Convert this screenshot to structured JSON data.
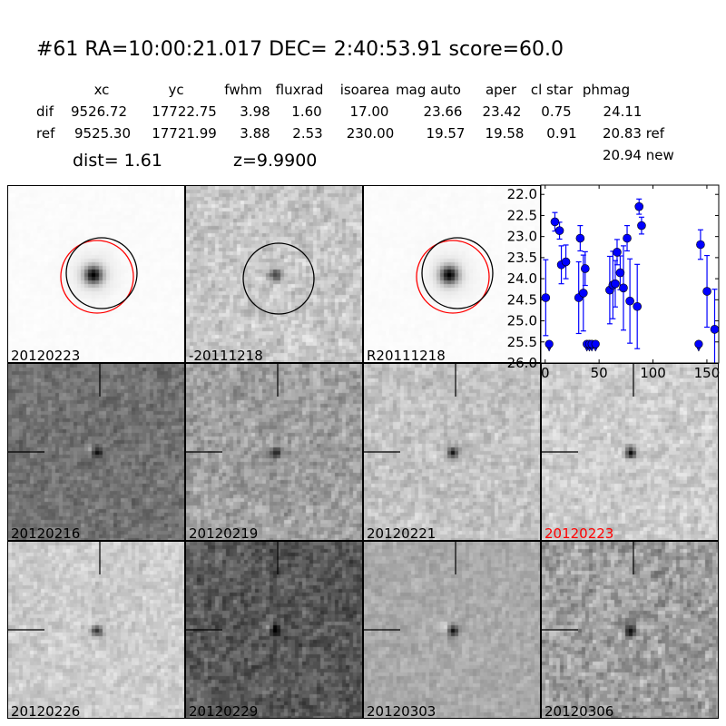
{
  "title": "#61   RA=10:00:21.017 DEC= 2:40:53.91      score=60.0",
  "table": {
    "headers": [
      "xc",
      "yc",
      "fwhm",
      "fluxrad",
      "isoarea",
      "mag auto",
      "aper",
      "cl star",
      "phmag"
    ],
    "rows": [
      {
        "label": "dif",
        "values": [
          "9526.72",
          "17722.75",
          "3.98",
          "1.60",
          "17.00",
          "23.66",
          "23.42",
          "0.75",
          "24.11"
        ]
      },
      {
        "label": "ref",
        "values": [
          "9525.30",
          "17721.99",
          "3.88",
          "2.53",
          "230.00",
          "19.57",
          "19.58",
          "0.91",
          "20.83 ref"
        ]
      }
    ],
    "extra": "20.94 new",
    "dist": "dist=  1.61",
    "z": "z=9.9900"
  },
  "cutouts": [
    {
      "label": "20120223",
      "color": "#000000"
    },
    {
      "label": "-20111218",
      "color": "#000000"
    },
    {
      "label": "R20111218",
      "color": "#000000"
    },
    {
      "label": "20120216",
      "color": "#000000"
    },
    {
      "label": "20120219",
      "color": "#000000"
    },
    {
      "label": "20120221",
      "color": "#000000"
    },
    {
      "label": "20120223",
      "color": "#ff0000"
    },
    {
      "label": "20120226",
      "color": "#000000"
    },
    {
      "label": "20120229",
      "color": "#000000"
    },
    {
      "label": "20120303",
      "color": "#000000"
    },
    {
      "label": "20120306",
      "color": "#000000"
    }
  ],
  "chart_data": {
    "type": "scatter",
    "xlim": [
      -4,
      161
    ],
    "ylim": [
      26.0,
      21.78
    ],
    "y_inverted": true,
    "xticks": [
      0,
      50,
      100,
      150
    ],
    "yticks": [
      "22.0",
      "22.5",
      "23.0",
      "23.5",
      "24.0",
      "24.5",
      "25.0",
      "25.5",
      "26.0"
    ],
    "marker_color": "#0000ff",
    "points": [
      {
        "x": 0.5,
        "y": 24.45,
        "err": 0.9
      },
      {
        "x": 9.0,
        "y": 22.65,
        "err": 0.22
      },
      {
        "x": 13.3,
        "y": 22.86,
        "err": 0.2
      },
      {
        "x": 15.0,
        "y": 23.67,
        "err": 0.45
      },
      {
        "x": 19.2,
        "y": 23.6,
        "err": 0.4
      },
      {
        "x": 31.1,
        "y": 24.45,
        "err": 0.85
      },
      {
        "x": 32.5,
        "y": 23.04,
        "err": 0.3
      },
      {
        "x": 35.4,
        "y": 24.34,
        "err": 0.9
      },
      {
        "x": 37.1,
        "y": 23.76,
        "err": 0.4
      },
      {
        "x": 59.9,
        "y": 24.27,
        "err": 0.8
      },
      {
        "x": 62.8,
        "y": 24.15,
        "err": 0.8
      },
      {
        "x": 65.0,
        "y": 24.12,
        "err": 0.55
      },
      {
        "x": 66.7,
        "y": 23.37,
        "err": 0.3
      },
      {
        "x": 69.6,
        "y": 23.86,
        "err": 0.4
      },
      {
        "x": 72.6,
        "y": 24.22,
        "err": 1.0
      },
      {
        "x": 76.0,
        "y": 23.04,
        "err": 0.3
      },
      {
        "x": 78.6,
        "y": 24.53,
        "err": 1.0
      },
      {
        "x": 85.4,
        "y": 24.66,
        "err": 1.0
      },
      {
        "x": 87.1,
        "y": 22.29,
        "err": 0.18
      },
      {
        "x": 89.4,
        "y": 22.74,
        "err": 0.2
      },
      {
        "x": 144.1,
        "y": 23.19,
        "err": 0.35
      },
      {
        "x": 150.1,
        "y": 24.3,
        "err": 0.85
      },
      {
        "x": 157.2,
        "y": 25.2,
        "err": 0.95
      }
    ],
    "upper_limits": [
      {
        "x": 3.7,
        "y": 25.55
      },
      {
        "x": 38.7,
        "y": 25.55
      },
      {
        "x": 41.0,
        "y": 25.55
      },
      {
        "x": 43.3,
        "y": 25.55
      },
      {
        "x": 46.7,
        "y": 25.55
      },
      {
        "x": 142.4,
        "y": 25.55
      }
    ]
  }
}
